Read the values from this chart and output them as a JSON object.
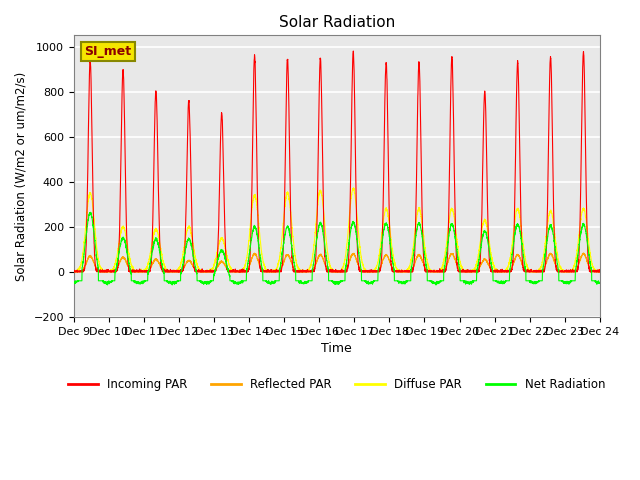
{
  "title": "Solar Radiation",
  "ylabel": "Solar Radiation (W/m2 or um/m2/s)",
  "xlabel": "Time",
  "ylim": [
    -200,
    1050
  ],
  "yticks": [
    -200,
    0,
    200,
    400,
    600,
    800,
    1000
  ],
  "xlim": [
    0,
    15
  ],
  "xtick_positions": [
    0,
    1,
    2,
    3,
    4,
    5,
    6,
    7,
    8,
    9,
    10,
    11,
    12,
    13,
    14,
    15
  ],
  "xtick_labels": [
    "Dec 9",
    "Dec 10",
    "Dec 11",
    "Dec 12",
    "Dec 13",
    "Dec 14",
    "Dec 15",
    "Dec 16",
    "Dec 17",
    "Dec 18",
    "Dec 19",
    "Dec 20",
    "Dec 21",
    "Dec 22",
    "Dec 23",
    "Dec 24"
  ],
  "station_label": "SI_met",
  "bg_color": "#e8e8e8",
  "line_colors": {
    "incoming": "red",
    "reflected": "orange",
    "diffuse": "yellow",
    "net": "lime"
  },
  "day_peaks_incoming": [
    940,
    895,
    805,
    760,
    705,
    960,
    945,
    950,
    975,
    930,
    930,
    955,
    800,
    930,
    955,
    975
  ],
  "day_peaks_reflected": [
    70,
    65,
    55,
    50,
    45,
    80,
    75,
    75,
    80,
    75,
    75,
    80,
    55,
    75,
    80,
    80
  ],
  "day_peaks_diffuse": [
    350,
    200,
    190,
    200,
    150,
    340,
    350,
    360,
    370,
    280,
    280,
    280,
    230,
    280,
    270,
    280
  ],
  "day_peaks_net": [
    310,
    200,
    195,
    195,
    145,
    250,
    250,
    265,
    270,
    265,
    265,
    260,
    230,
    260,
    255,
    260
  ],
  "legend_labels": [
    "Incoming PAR",
    "Reflected PAR",
    "Diffuse PAR",
    "Net Radiation"
  ],
  "legend_colors": [
    "red",
    "orange",
    "yellow",
    "lime"
  ]
}
